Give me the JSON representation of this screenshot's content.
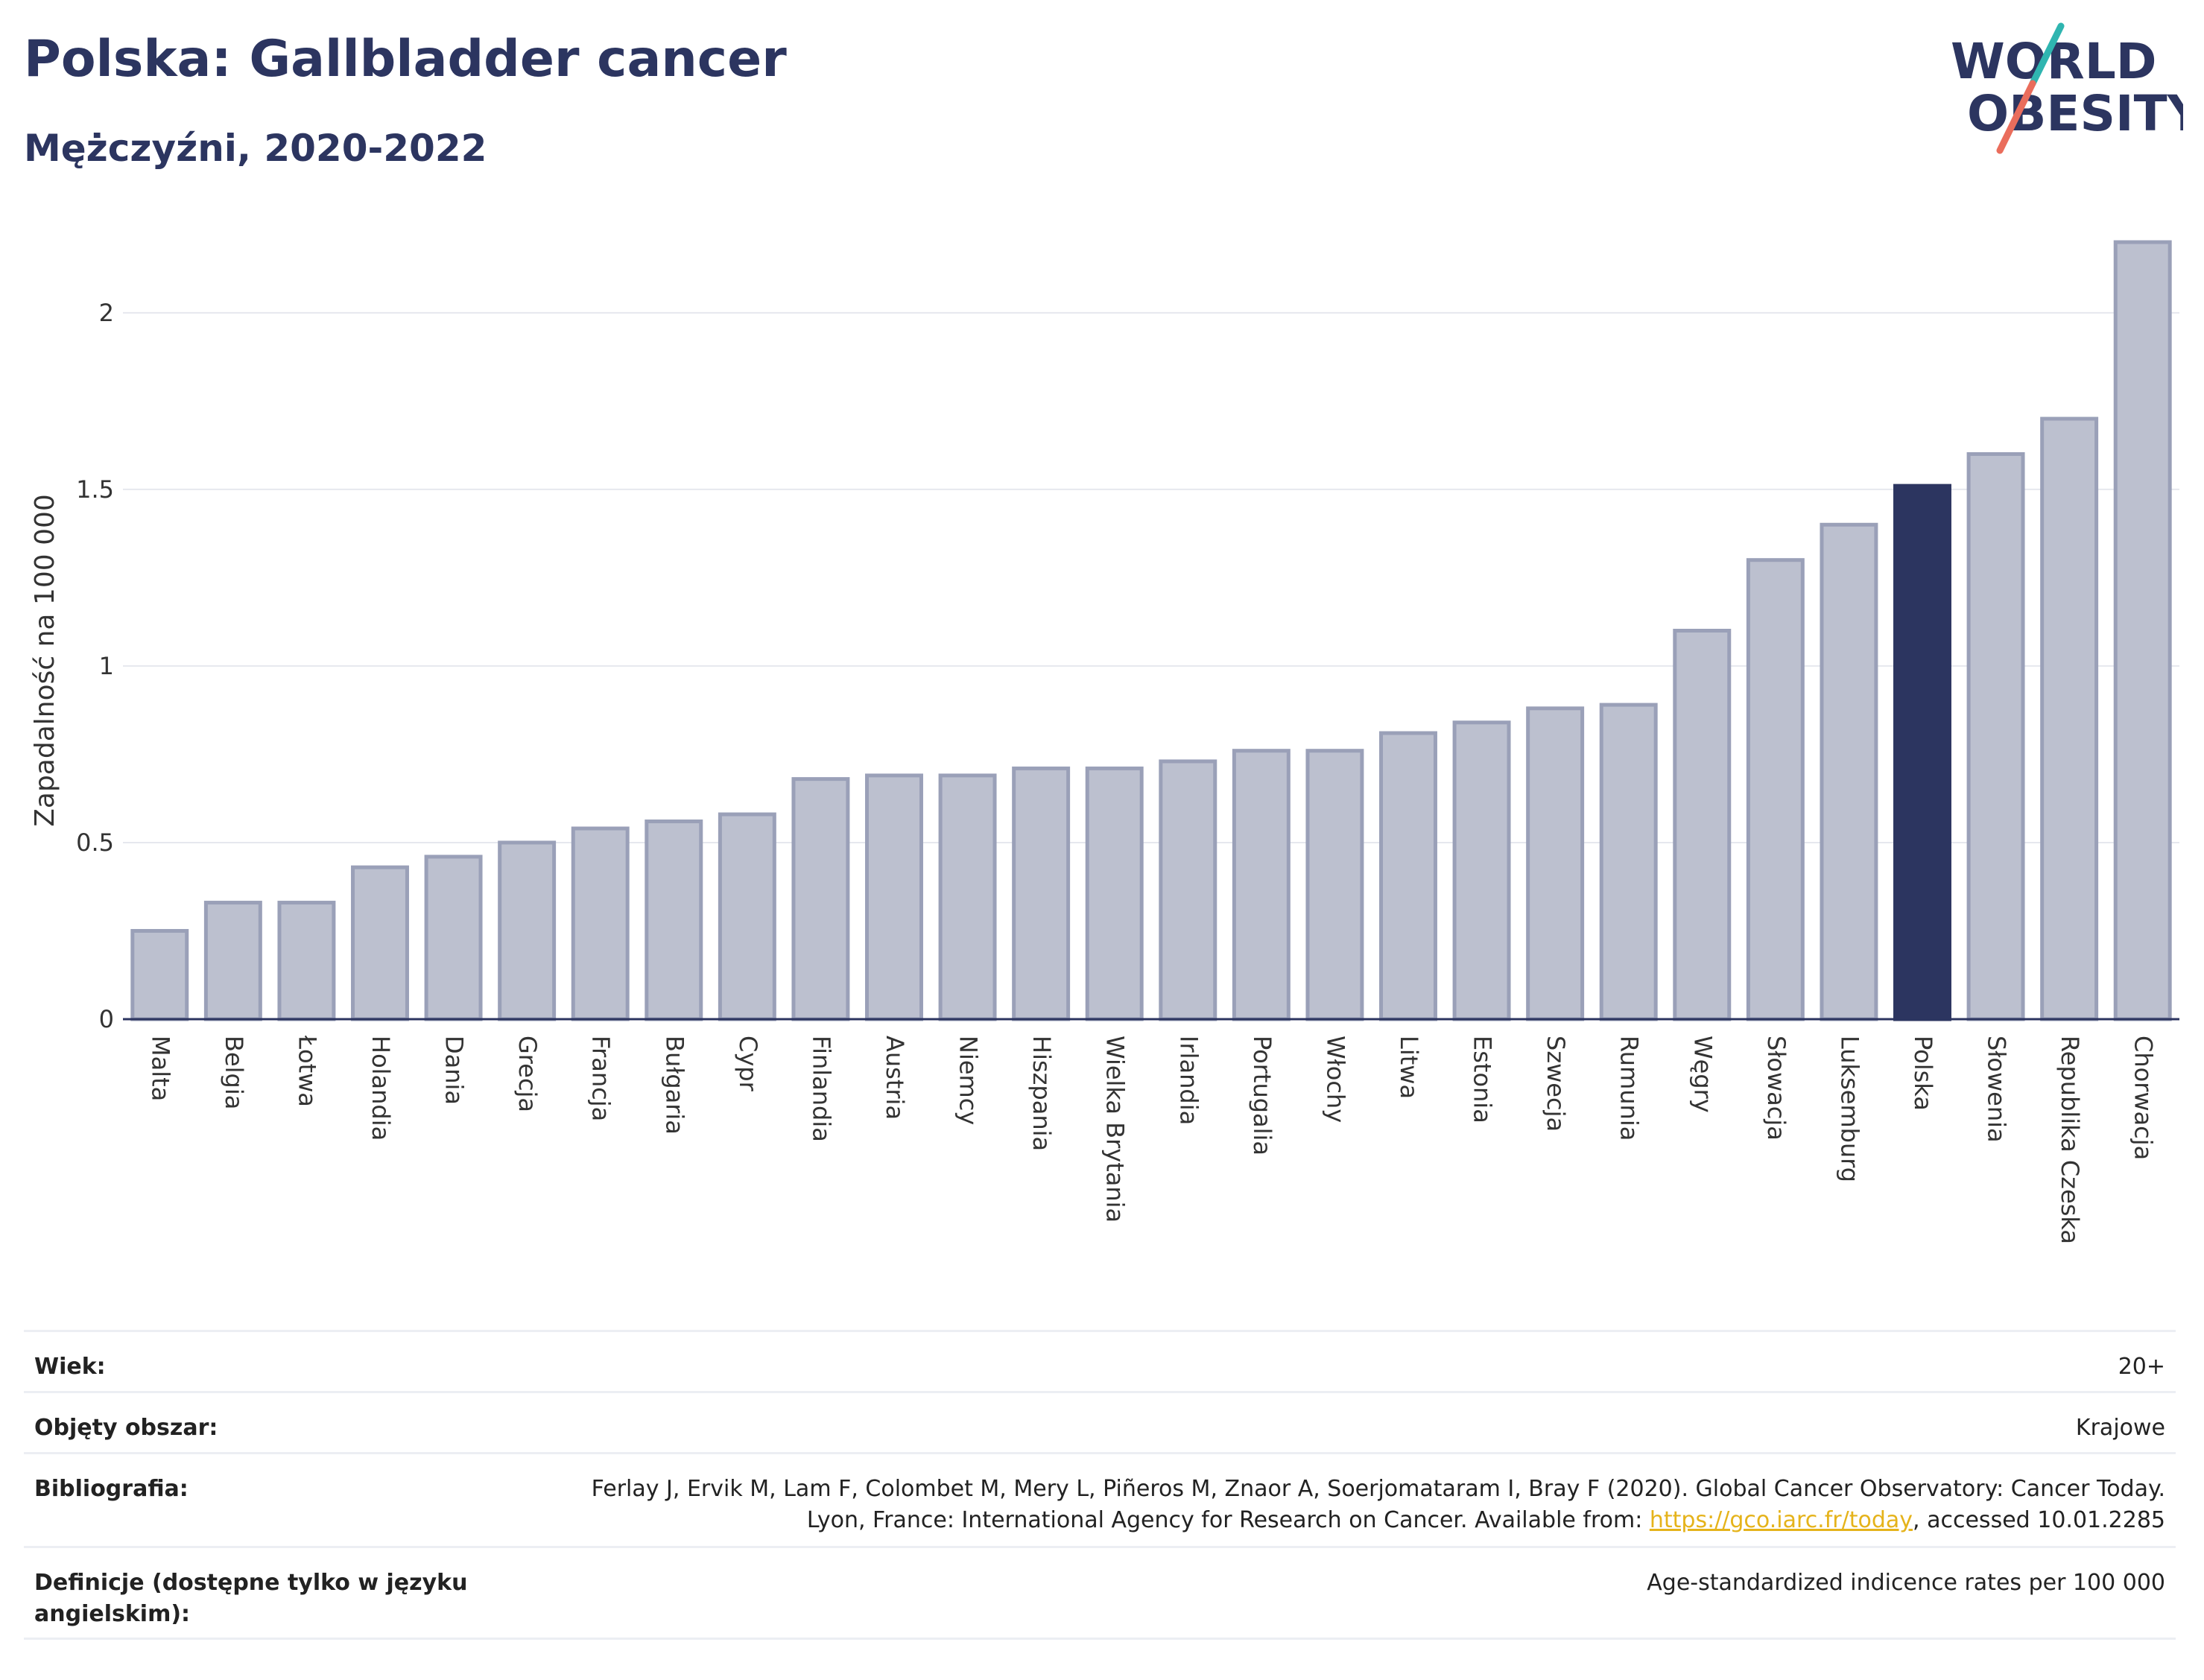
{
  "header": {
    "title": "Polska: Gallbladder cancer",
    "subtitle": "Mężczyźni, 2020-2022"
  },
  "logo": {
    "line1": "WORLD",
    "line2": "OBESITY",
    "accent_teal": "#2fb5b0",
    "accent_coral": "#ea6d5c",
    "text_color": "#2c3560"
  },
  "colors": {
    "bar_fill": "#bcc0cf",
    "bar_stroke": "#9aa0b8",
    "highlight": "#2c3560",
    "grid": "#e6e8ee"
  },
  "chart_data": {
    "type": "bar",
    "title": "Polska: Gallbladder cancer",
    "subtitle": "Mężczyźni, 2020-2022",
    "ylabel": "Zapadalność na 100 000",
    "xlabel": "",
    "ylim": [
      0,
      2.2
    ],
    "yticks": [
      0,
      0.5,
      1,
      1.5,
      2
    ],
    "ytick_labels": [
      "0",
      "0.5",
      "1",
      "1.5",
      "2"
    ],
    "grid": true,
    "highlight": "Polska",
    "categories": [
      "Malta",
      "Belgia",
      "Łotwa",
      "Holandia",
      "Dania",
      "Grecja",
      "Francja",
      "Bułgaria",
      "Cypr",
      "Finlandia",
      "Austria",
      "Niemcy",
      "Hiszpania",
      "Wielka Brytania",
      "Irlandia",
      "Portugalia",
      "Włochy",
      "Litwa",
      "Estonia",
      "Szwecja",
      "Rumunia",
      "Węgry",
      "Słowacja",
      "Luksemburg",
      "Polska",
      "Słowenia",
      "Republika Czeska",
      "Chorwacja"
    ],
    "values": [
      0.25,
      0.33,
      0.33,
      0.43,
      0.46,
      0.5,
      0.54,
      0.56,
      0.58,
      0.68,
      0.69,
      0.69,
      0.71,
      0.71,
      0.73,
      0.76,
      0.76,
      0.81,
      0.84,
      0.88,
      0.89,
      1.1,
      1.3,
      1.4,
      1.51,
      1.6,
      1.7,
      2.2
    ]
  },
  "meta": [
    {
      "label": "Wiek:",
      "value": "20+"
    },
    {
      "label": "Objęty obszar:",
      "value": "Krajowe"
    },
    {
      "label": "Bibliografia:",
      "value_pre": "Ferlay J, Ervik M, Lam F, Colombet M, Mery L, Piñeros M, Znaor A, Soerjomataram I, Bray F (2020). Global Cancer Observatory: Cancer Today. Lyon, France: International Agency for Research on Cancer. Available from: ",
      "link": "https://gco.iarc.fr/today",
      "value_post": ", accessed 10.01.2285"
    },
    {
      "label": "Definicje (dostępne tylko w języku angielskim):",
      "value": "Age-standardized indicence rates per 100 000"
    }
  ]
}
